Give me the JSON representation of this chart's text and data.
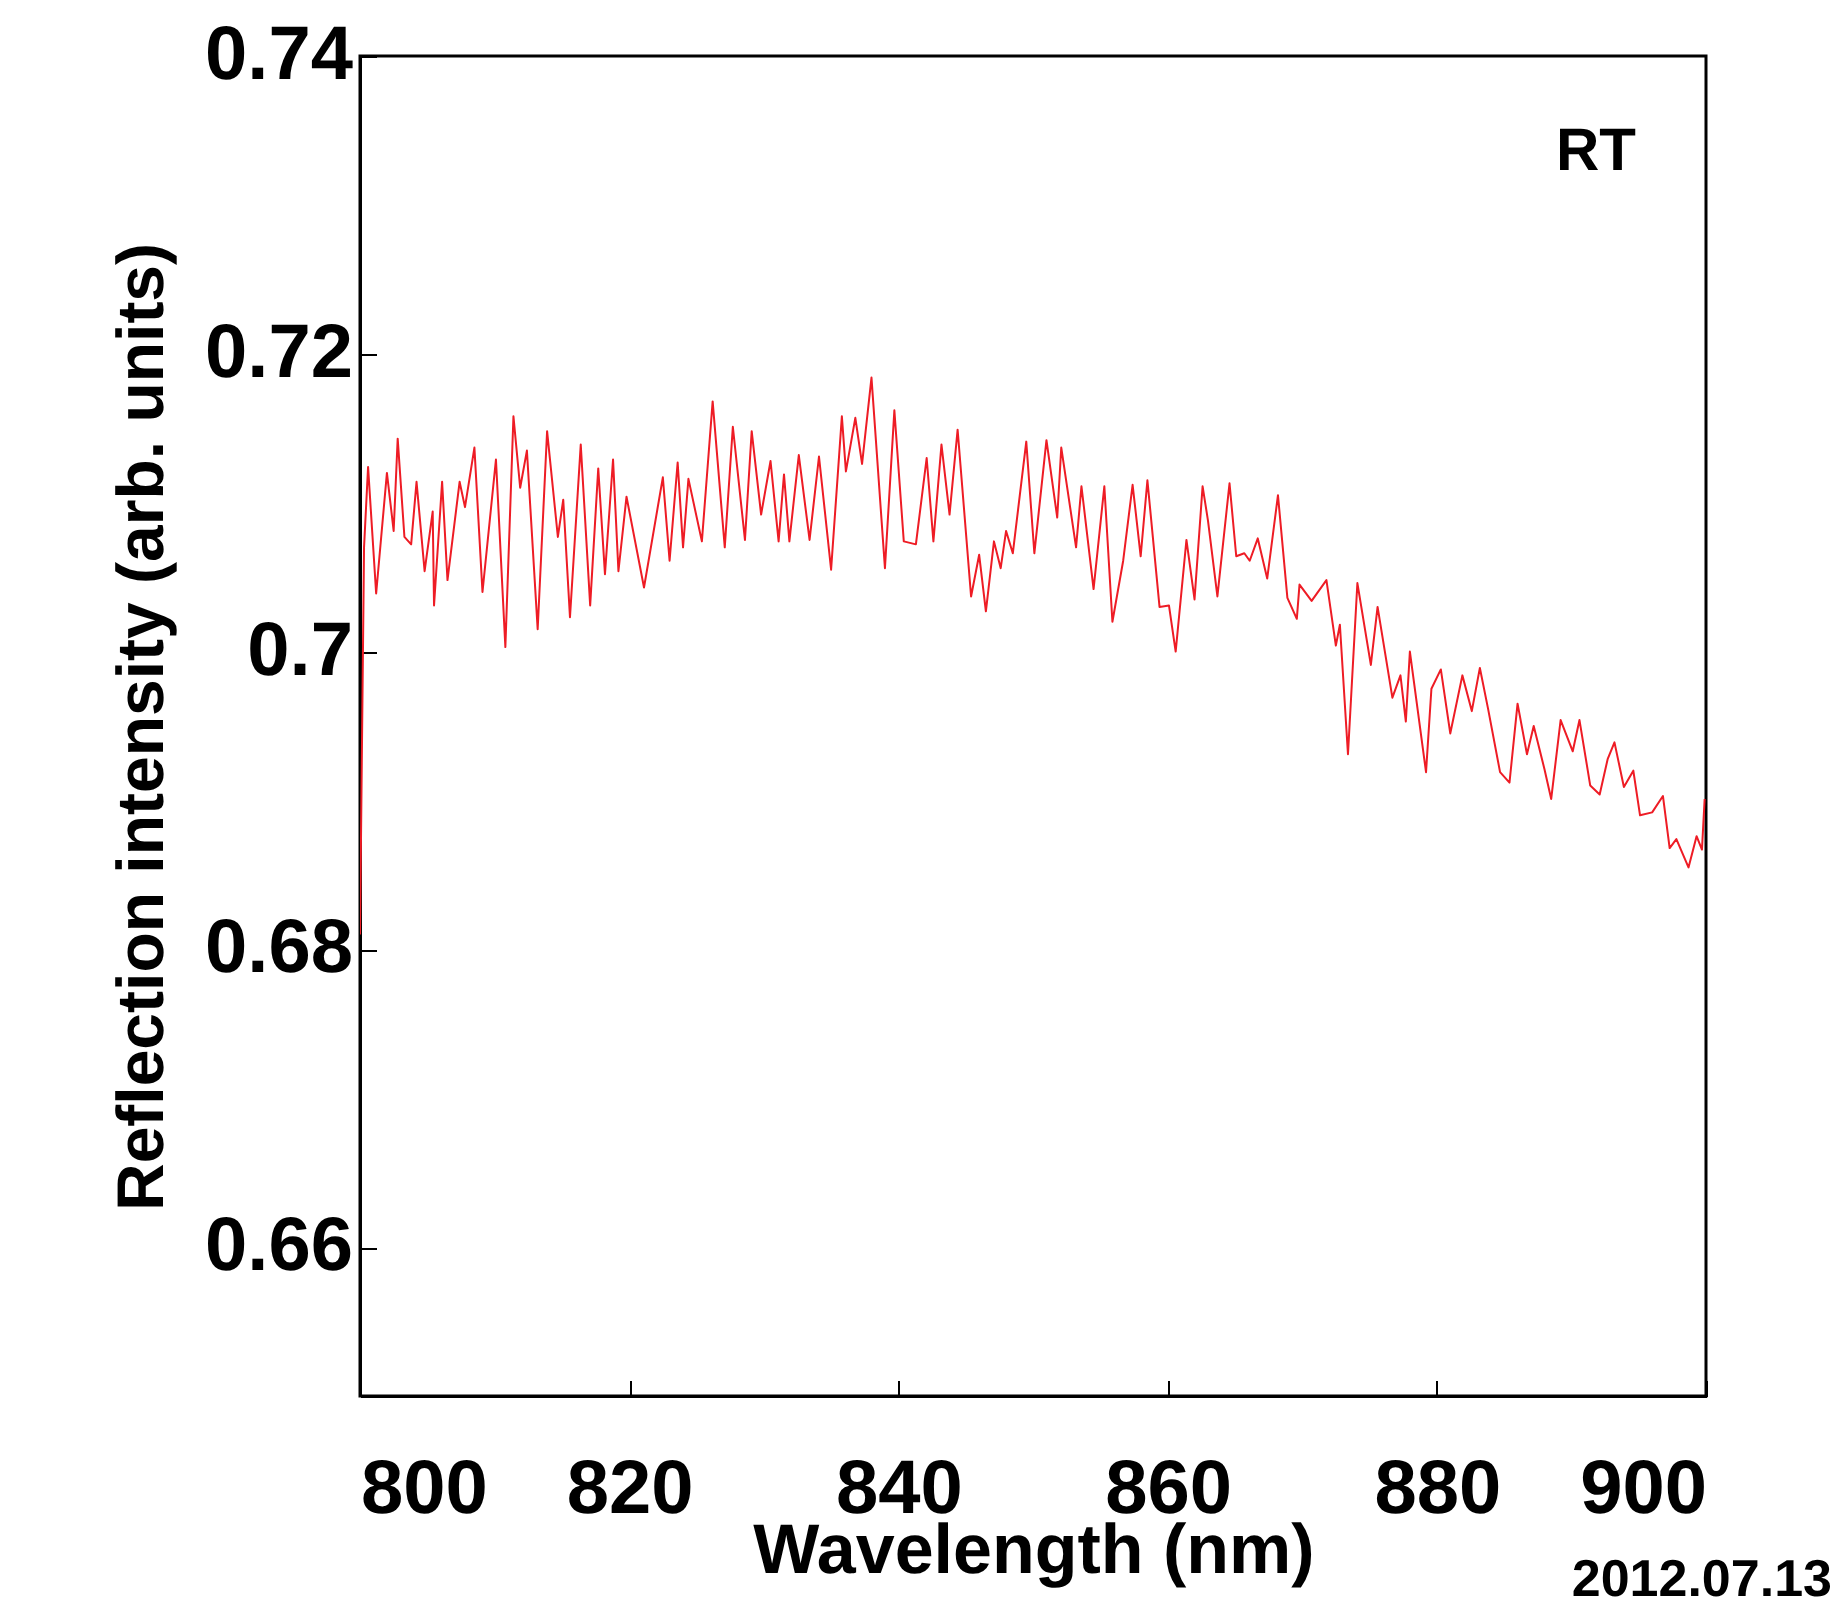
{
  "chart_data": {
    "type": "line",
    "xlabel": "Wavelength (nm)",
    "ylabel": "Reflection intensity (arb. units)",
    "annotations": [
      "RT",
      "2012.07.13"
    ],
    "xlim": [
      800,
      900
    ],
    "ylim": [
      0.65,
      0.74
    ],
    "xticks": [
      800,
      820,
      840,
      860,
      880,
      900
    ],
    "yticks": [
      0.66,
      0.68,
      0.7,
      0.72,
      0.74
    ],
    "x": [
      800,
      800.3,
      800.6,
      801.2,
      802.0,
      802.5,
      802.8,
      803.3,
      803.8,
      804.2,
      804.8,
      805.4,
      805.5,
      806.1,
      806.5,
      807.4,
      807.8,
      808.5,
      809.1,
      810.1,
      810.8,
      811.4,
      811.9,
      812.4,
      813.2,
      813.9,
      814.7,
      815.1,
      815.6,
      816.4,
      817.1,
      817.7,
      818.2,
      818.8,
      819.2,
      819.8,
      821.1,
      822.5,
      823.0,
      823.6,
      824.0,
      824.4,
      825.4,
      826.2,
      827.1,
      827.7,
      828.6,
      829.1,
      829.8,
      830.5,
      831.1,
      831.5,
      831.9,
      832.6,
      833.4,
      834.1,
      835.0,
      835.8,
      836.1,
      836.8,
      837.3,
      838.0,
      839.0,
      839.7,
      840.4,
      841.3,
      842.1,
      842.6,
      843.2,
      843.8,
      844.4,
      845.4,
      846.0,
      846.5,
      847.1,
      847.6,
      848.0,
      848.5,
      849.5,
      850.1,
      851.0,
      851.8,
      852.1,
      853.2,
      853.6,
      854.5,
      855.3,
      855.9,
      856.7,
      857.4,
      858.0,
      858.5,
      859.4,
      860.1,
      860.6,
      861.4,
      862.0,
      862.6,
      863.0,
      863.7,
      864.6,
      865.1,
      865.7,
      866.1,
      866.7,
      867.4,
      868.2,
      868.9,
      869.6,
      869.8,
      870.7,
      871.8,
      872.5,
      872.8,
      873.4,
      874.1,
      875.1,
      875.6,
      876.7,
      877.3,
      877.7,
      878.0,
      879.2,
      879.6,
      880.3,
      881.0,
      881.9,
      882.6,
      883.2,
      883.8,
      884.7,
      885.4,
      886.0,
      886.7,
      887.2,
      888.0,
      888.5,
      889.2,
      890.1,
      890.6,
      891.4,
      892.1,
      892.7,
      893.2,
      893.9,
      894.6,
      895.1,
      896.0,
      896.8,
      897.3,
      897.8,
      898.7,
      899.3,
      899.7,
      899.9
    ],
    "series": [
      {
        "color": "#ee1c25",
        "values": [
          0.681,
          0.707,
          0.7124,
          0.7039,
          0.712,
          0.7081,
          0.7143,
          0.7077,
          0.7072,
          0.7114,
          0.7054,
          0.7094,
          0.7031,
          0.7114,
          0.7048,
          0.7114,
          0.7097,
          0.7137,
          0.704,
          0.7129,
          0.7003,
          0.7158,
          0.711,
          0.7135,
          0.7015,
          0.7148,
          0.7077,
          0.7102,
          0.7023,
          0.7139,
          0.7031,
          0.7123,
          0.7052,
          0.7129,
          0.7054,
          0.7104,
          0.7043,
          0.7117,
          0.7061,
          0.7127,
          0.707,
          0.7116,
          0.7074,
          0.7168,
          0.707,
          0.7151,
          0.7075,
          0.7148,
          0.7092,
          0.7128,
          0.7074,
          0.7119,
          0.7074,
          0.7132,
          0.7075,
          0.7131,
          0.7055,
          0.7158,
          0.7121,
          0.7157,
          0.7126,
          0.7184,
          0.7056,
          0.7162,
          0.7074,
          0.7072,
          0.713,
          0.7074,
          0.7139,
          0.7092,
          0.7149,
          0.7037,
          0.7065,
          0.7027,
          0.7074,
          0.7056,
          0.7081,
          0.7066,
          0.7141,
          0.7066,
          0.7142,
          0.709,
          0.7137,
          0.707,
          0.7111,
          0.7042,
          0.7111,
          0.702,
          0.7061,
          0.7112,
          0.7064,
          0.7115,
          0.703,
          0.7031,
          0.7,
          0.7075,
          0.7035,
          0.7111,
          0.7088,
          0.7037,
          0.7113,
          0.7064,
          0.7066,
          0.7061,
          0.7076,
          0.7049,
          0.7105,
          0.7036,
          0.7022,
          0.7045,
          0.7034,
          0.7048,
          0.7004,
          0.7018,
          0.6931,
          0.7046,
          0.6991,
          0.703,
          0.6969,
          0.6984,
          0.6953,
          0.7,
          0.6919,
          0.6975,
          0.6988,
          0.6945,
          0.6984,
          0.696,
          0.6989,
          0.6962,
          0.6919,
          0.6912,
          0.6965,
          0.6931,
          0.695,
          0.6921,
          0.6901,
          0.6954,
          0.6933,
          0.6954,
          0.691,
          0.6904,
          0.6928,
          0.6939,
          0.6909,
          0.692,
          0.689,
          0.6892,
          0.6903,
          0.6868,
          0.6874,
          0.6855,
          0.6876,
          0.6867,
          0.6901
        ]
      }
    ]
  }
}
